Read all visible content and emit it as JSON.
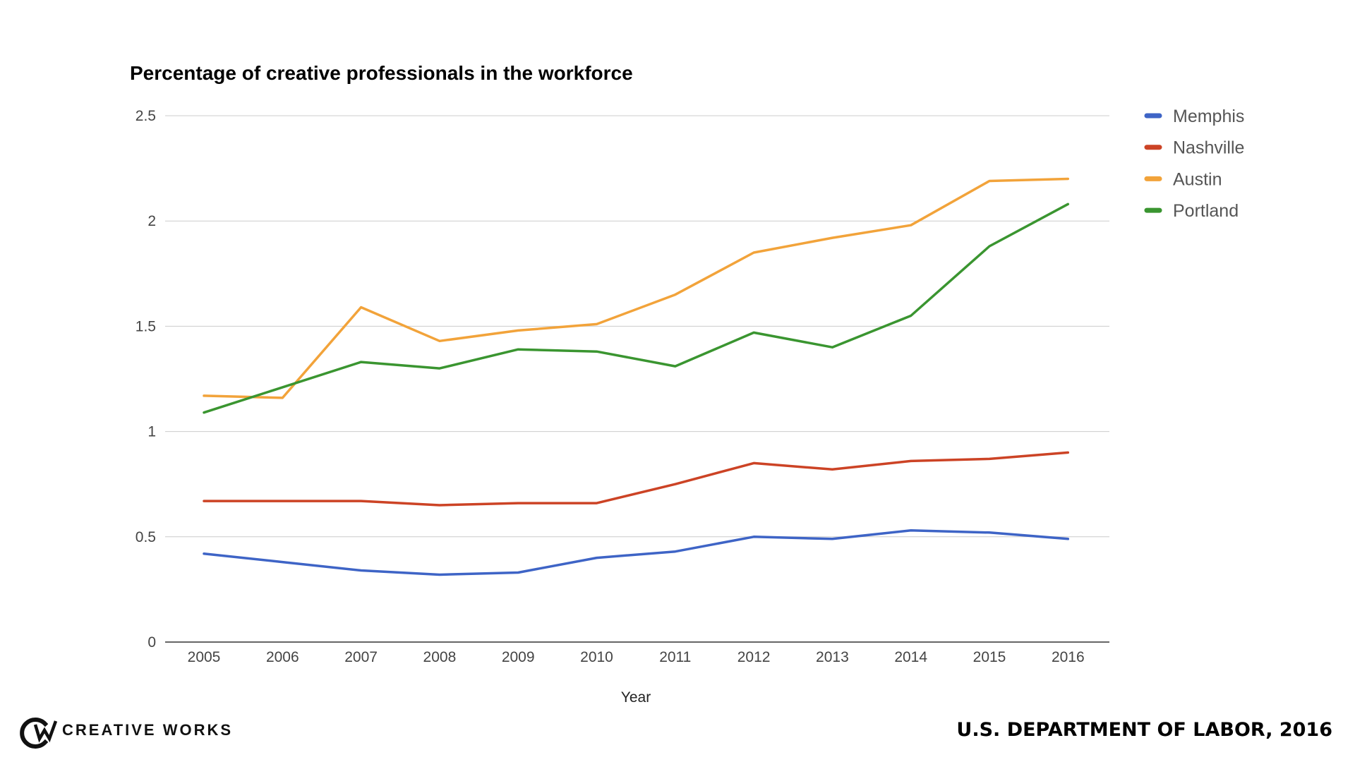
{
  "chart_data": {
    "type": "line",
    "title": "Percentage of creative professionals in the workforce",
    "xlabel": "Year",
    "ylabel": "",
    "ylim": [
      0,
      2.5
    ],
    "yticks": [
      0,
      0.5,
      1,
      1.5,
      2,
      2.5
    ],
    "ytick_labels": [
      "0",
      "0.5",
      "1",
      "1.5",
      "2",
      "2.5"
    ],
    "grid": true,
    "legend_position": "right",
    "categories": [
      "2005",
      "2006",
      "2007",
      "2008",
      "2009",
      "2010",
      "2011",
      "2012",
      "2013",
      "2014",
      "2015",
      "2016"
    ],
    "series": [
      {
        "name": "Memphis",
        "color": "#3e64c6",
        "values": [
          0.42,
          0.38,
          0.34,
          0.32,
          0.33,
          0.4,
          0.43,
          0.5,
          0.49,
          0.53,
          0.52,
          0.49
        ]
      },
      {
        "name": "Nashville",
        "color": "#cc4325",
        "values": [
          0.67,
          0.67,
          0.67,
          0.65,
          0.66,
          0.66,
          0.75,
          0.85,
          0.82,
          0.86,
          0.87,
          0.9
        ]
      },
      {
        "name": "Austin",
        "color": "#f2a33a",
        "values": [
          1.17,
          1.16,
          1.59,
          1.43,
          1.48,
          1.51,
          1.65,
          1.85,
          1.92,
          1.98,
          2.19,
          2.2
        ]
      },
      {
        "name": "Portland",
        "color": "#3a9530",
        "values": [
          1.09,
          1.21,
          1.33,
          1.3,
          1.39,
          1.38,
          1.31,
          1.47,
          1.4,
          1.55,
          1.88,
          2.08
        ]
      }
    ]
  },
  "footer": {
    "brand": "CREATIVE WORKS",
    "brand_icon": "creative-works-logo-icon",
    "source": "U.S. DEPARTMENT OF LABOR, 2016"
  }
}
